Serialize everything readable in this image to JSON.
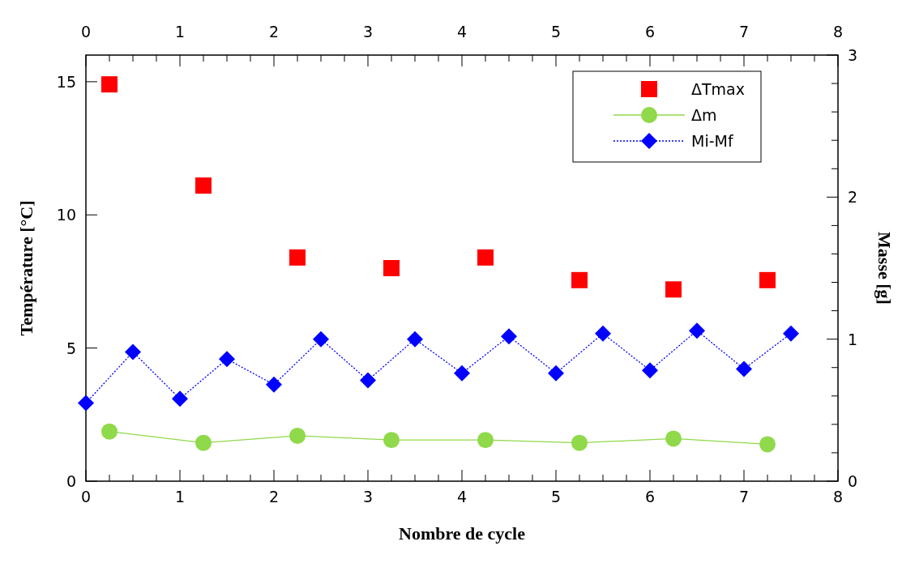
{
  "chart_data": {
    "type": "scatter",
    "xlabel": "Nombre de cycle",
    "ylabel": "Température [°C]",
    "y2label": "Masse [g]",
    "xlim": [
      0,
      8
    ],
    "xticks": [
      0,
      {
        "value": 0.25,
        "label": null
      },
      {
        "value": 0.5,
        "label": null
      },
      {
        "value": 0.75,
        "label": null
      },
      1,
      {
        "value": 1.25,
        "label": null
      },
      {
        "value": 1.5,
        "label": null
      },
      {
        "value": 1.75,
        "label": null
      },
      2,
      {
        "value": 2.25,
        "label": null
      },
      {
        "value": 2.5,
        "label": null
      },
      {
        "value": 2.75,
        "label": null
      },
      3,
      {
        "value": 3.25,
        "label": null
      },
      {
        "value": 3.5,
        "label": null
      },
      {
        "value": 3.75,
        "label": null
      },
      4,
      {
        "value": 4.25,
        "label": null
      },
      {
        "value": 4.5,
        "label": null
      },
      {
        "value": 4.75,
        "label": null
      },
      5,
      {
        "value": 5.25,
        "label": null
      },
      {
        "value": 5.5,
        "label": null
      },
      {
        "value": 5.75,
        "label": null
      },
      6,
      {
        "value": 6.25,
        "label": null
      },
      {
        "value": 6.5,
        "label": null
      },
      {
        "value": 6.75,
        "label": null
      },
      7,
      {
        "value": 7.25,
        "label": null
      },
      {
        "value": 7.5,
        "label": null
      },
      {
        "value": 7.75,
        "label": null
      },
      8
    ],
    "x2lim": [
      0,
      8
    ],
    "x2ticks": [
      0,
      {
        "value": 0.25,
        "label": null
      },
      {
        "value": 0.5,
        "label": null
      },
      {
        "value": 0.75,
        "label": null
      },
      1,
      {
        "value": 1.25,
        "label": null
      },
      {
        "value": 1.5,
        "label": null
      },
      {
        "value": 1.75,
        "label": null
      },
      2,
      {
        "value": 2.25,
        "label": null
      },
      {
        "value": 2.5,
        "label": null
      },
      {
        "value": 2.75,
        "label": null
      },
      3,
      {
        "value": 3.25,
        "label": null
      },
      {
        "value": 3.5,
        "label": null
      },
      {
        "value": 3.75,
        "label": null
      },
      4,
      {
        "value": 4.25,
        "label": null
      },
      {
        "value": 4.5,
        "label": null
      },
      {
        "value": 4.75,
        "label": null
      },
      5,
      {
        "value": 5.25,
        "label": null
      },
      {
        "value": 5.5,
        "label": null
      },
      {
        "value": 5.75,
        "label": null
      },
      6,
      {
        "value": 6.25,
        "label": null
      },
      {
        "value": 6.5,
        "label": null
      },
      {
        "value": 6.75,
        "label": null
      },
      7,
      {
        "value": 7.25,
        "label": null
      },
      {
        "value": 7.5,
        "label": null
      },
      {
        "value": 7.75,
        "label": null
      },
      8
    ],
    "ylim": [
      0,
      16
    ],
    "yticks": [
      0,
      5,
      10,
      15
    ],
    "y2lim": [
      0,
      3
    ],
    "y2ticks": [
      0,
      {
        "value": 0.2,
        "label": null
      },
      {
        "value": 0.4,
        "label": null
      },
      {
        "value": 0.6,
        "label": null
      },
      {
        "value": 0.8,
        "label": null
      },
      1,
      {
        "value": 1.2,
        "label": null
      },
      {
        "value": 1.4,
        "label": null
      },
      {
        "value": 1.6,
        "label": null
      },
      {
        "value": 1.8,
        "label": null
      },
      2,
      {
        "value": 2.2,
        "label": null
      },
      {
        "value": 2.4,
        "label": null
      },
      {
        "value": 2.6,
        "label": null
      },
      {
        "value": 2.8,
        "label": null
      },
      3
    ],
    "grid": false,
    "legend": "top right",
    "series": [
      {
        "name": "ΔTmax",
        "marker": "square",
        "color": "#ff0000",
        "x": [
          0.25,
          1.25,
          2.25,
          3.25,
          4.25,
          5.25,
          6.25,
          7.25
        ],
        "values": [
          14.9,
          11.1,
          8.4,
          8.0,
          8.4,
          7.55,
          7.2,
          7.55
        ]
      },
      {
        "name": "Δm",
        "type": "line",
        "axis": "y2",
        "marker": "circle",
        "line_style": "solid",
        "color": "#8fd94a",
        "x": [
          0.25,
          1.25,
          2.25,
          3.25,
          4.25,
          5.25,
          6.25,
          7.25
        ],
        "values": [
          0.35,
          0.27,
          0.32,
          0.29,
          0.29,
          0.27,
          0.3,
          0.26
        ]
      },
      {
        "name": "Mi-Mf",
        "type": "line",
        "axis": "y2",
        "marker": "diamond",
        "line_style": "dotted",
        "color": "#0000ff",
        "x": [
          0,
          0.5,
          1,
          1.5,
          2,
          2.5,
          3,
          3.5,
          4,
          4.5,
          5,
          5.5,
          6,
          6.5,
          7,
          7.5
        ],
        "values": [
          0.55,
          0.91,
          0.58,
          0.86,
          0.68,
          1.0,
          0.71,
          1.0,
          0.76,
          1.02,
          0.76,
          1.04,
          0.78,
          1.06,
          0.79,
          1.04
        ]
      }
    ]
  }
}
